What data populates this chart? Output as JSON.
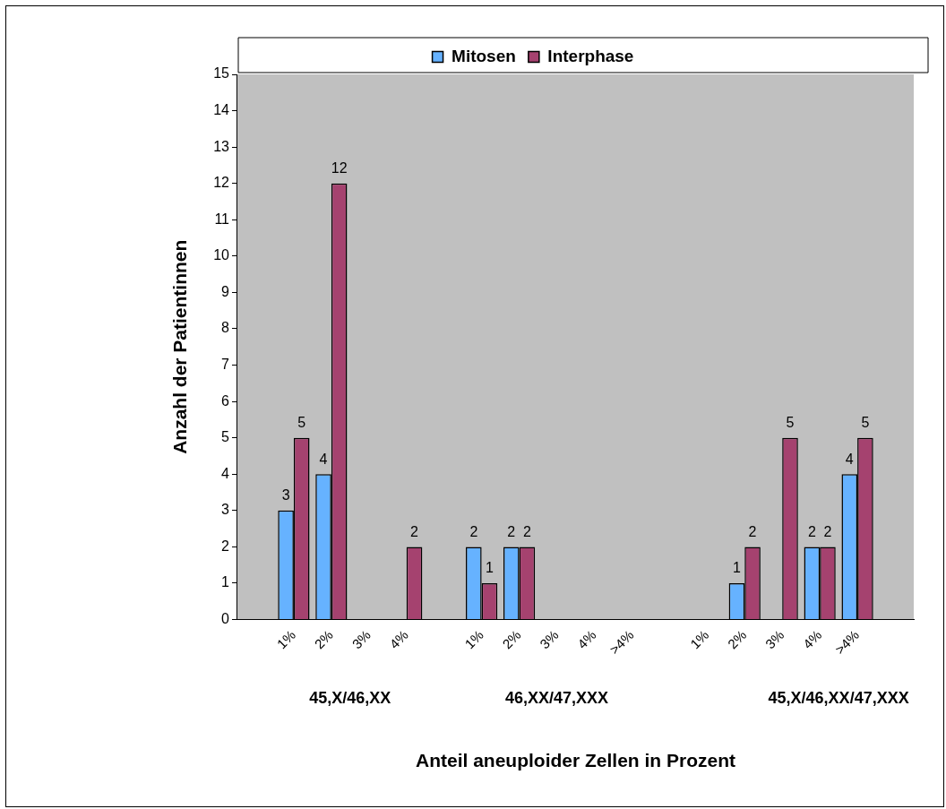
{
  "chart_data": {
    "type": "bar",
    "xlabel": "Anteil aneuploider Zellen in Prozent",
    "ylabel": "Anzahl der Patientinnen",
    "categories": [
      null,
      "1%",
      "2%",
      "3%",
      "4%",
      null,
      "1%",
      "2%",
      "3%",
      "4%",
      ">4%",
      null,
      "1%",
      "2%",
      "3%",
      "4%",
      ">4%",
      null
    ],
    "series": [
      {
        "name": "Mitosen",
        "color": "#66b2ff",
        "values": [
          null,
          3,
          4,
          null,
          null,
          null,
          2,
          2,
          null,
          null,
          null,
          null,
          null,
          1,
          null,
          2,
          4,
          null
        ]
      },
      {
        "name": "Interphase",
        "color": "#a5426f",
        "values": [
          null,
          5,
          12,
          null,
          2,
          null,
          1,
          2,
          null,
          null,
          null,
          null,
          null,
          2,
          5,
          2,
          5,
          null
        ]
      }
    ],
    "ylim": [
      0,
      15
    ],
    "yticks": [
      0,
      1,
      2,
      3,
      4,
      5,
      6,
      7,
      8,
      9,
      10,
      11,
      12,
      13,
      14,
      15
    ],
    "grid": false,
    "legend": "top",
    "data_labels": true,
    "annotations": [
      "45,X/46,XX",
      "46,XX/47,XXX",
      "45,X/46,XX/47,XXX"
    ]
  }
}
